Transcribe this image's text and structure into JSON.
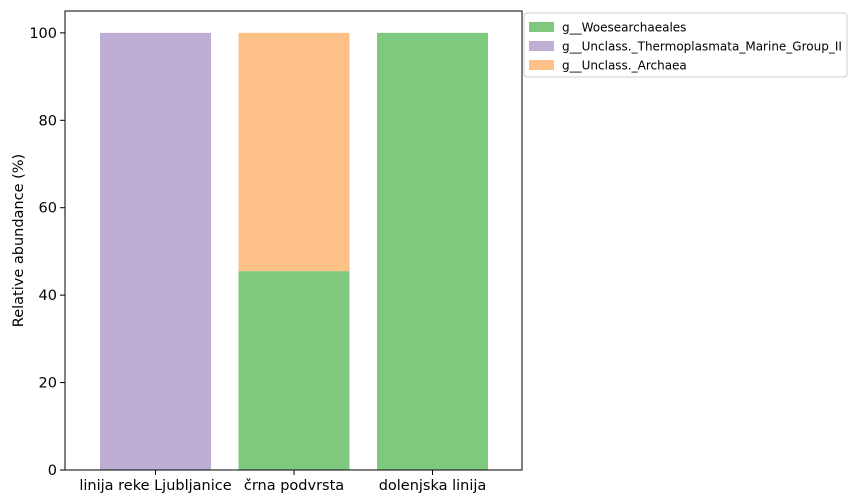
{
  "chart_data": {
    "type": "bar",
    "stacked": true,
    "categories": [
      "linija reke Ljubljanice",
      "črna podvrsta",
      "dolenjska linija"
    ],
    "series": [
      {
        "name": "g__Woesearchaeales",
        "values": [
          0,
          45.5,
          100
        ],
        "color": "#7fc97f"
      },
      {
        "name": "g__Unclass._Thermoplasmata_Marine_Group_II",
        "values": [
          100,
          0,
          0
        ],
        "color": "#beaed4"
      },
      {
        "name": "g__Unclass._Archaea",
        "values": [
          0,
          54.5,
          0
        ],
        "color": "#fdc086"
      }
    ],
    "title": "",
    "xlabel": "",
    "ylabel": "Relative abundance (%)",
    "ylim": [
      0,
      105
    ],
    "yticks": [
      0,
      20,
      40,
      60,
      80,
      100
    ],
    "grid": false,
    "legend_position": "outside-top-right"
  }
}
